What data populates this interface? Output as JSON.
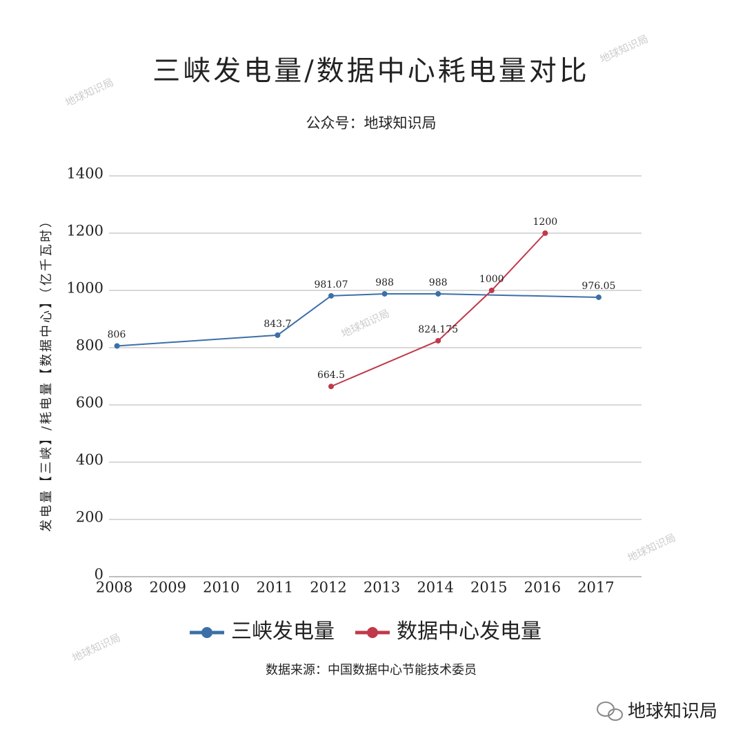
{
  "chart_data": {
    "type": "line",
    "title": "三峡发电量/数据中心耗电量对比",
    "subtitle": "公众号：地球知识局",
    "y_label": "发电量【三峡】/耗电量【数据中心】（亿千瓦时）",
    "source": "数据来源：中国数据中心节能技术委员",
    "watermark": "地球知识局",
    "xlim": [
      2007.85,
      2017.8
    ],
    "xticks": [
      2008,
      2009,
      2010,
      2011,
      2012,
      2013,
      2014,
      2015,
      2016,
      2017
    ],
    "ylim": [
      0,
      1400
    ],
    "yticks": [
      0,
      200,
      400,
      600,
      800,
      1000,
      1200,
      1400
    ],
    "grid": true,
    "legend": "bottom",
    "series": [
      {
        "name": "三峡发电量",
        "color": "#3b6fa8",
        "x": [
          2008,
          2011,
          2012,
          2013,
          2014,
          2017
        ],
        "values": [
          806,
          843.7,
          981.07,
          988,
          988,
          976.05
        ]
      },
      {
        "name": "数据中心发电量",
        "color": "#c0394a",
        "x": [
          2012,
          2014,
          2015,
          2016
        ],
        "values": [
          664.5,
          824.175,
          1000,
          1200
        ]
      }
    ]
  }
}
